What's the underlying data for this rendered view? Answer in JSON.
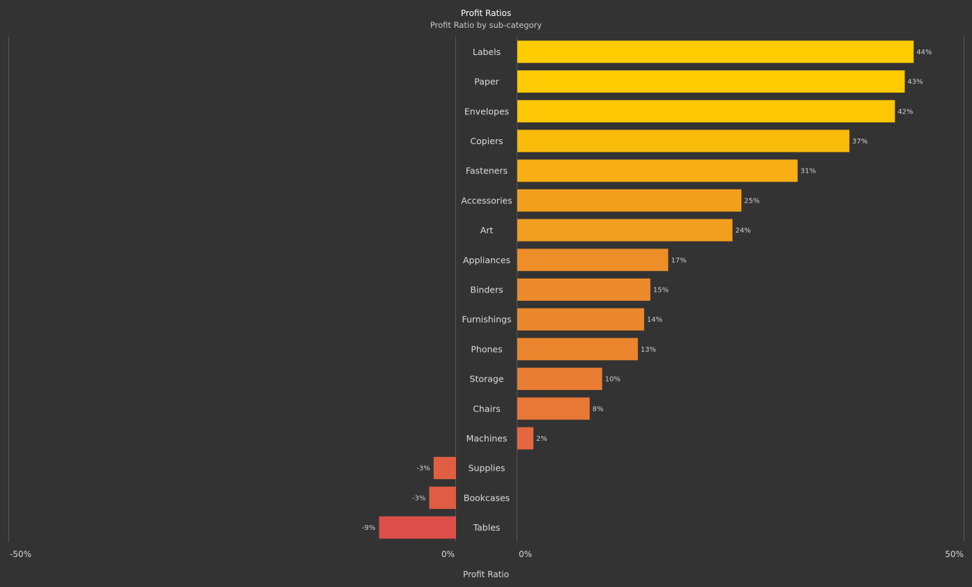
{
  "chart_data": {
    "type": "bar",
    "orientation": "horizontal",
    "title": "Profit Ratios",
    "subtitle": "Profit Ratio by sub-category",
    "xlabel": "Profit Ratio",
    "categories": [
      "Labels",
      "Paper",
      "Envelopes",
      "Copiers",
      "Fasteners",
      "Accessories",
      "Art",
      "Appliances",
      "Binders",
      "Furnishings",
      "Phones",
      "Storage",
      "Chairs",
      "Machines",
      "Supplies",
      "Bookcases",
      "Tables"
    ],
    "values": [
      44.4,
      43.4,
      42.3,
      37.2,
      31.4,
      25.1,
      24.1,
      16.9,
      14.9,
      14.2,
      13.5,
      9.5,
      8.1,
      1.8,
      -2.5,
      -3.0,
      -8.6
    ],
    "value_labels": [
      "44%",
      "43%",
      "42%",
      "37%",
      "31%",
      "25%",
      "24%",
      "17%",
      "15%",
      "14%",
      "13%",
      "10%",
      "8%",
      "2%",
      "-3%",
      "-3%",
      "-9%"
    ],
    "negative_axis": {
      "range": [
        -50,
        0
      ],
      "tick_labels": [
        "-50%",
        "0%"
      ]
    },
    "positive_axis": {
      "range": [
        0,
        50
      ],
      "tick_labels": [
        "0%",
        "50%"
      ]
    },
    "grid": false,
    "color_scale": {
      "high": "#ffcc00",
      "mid": "#ec8a2c",
      "low": "#dc4e4a"
    }
  }
}
